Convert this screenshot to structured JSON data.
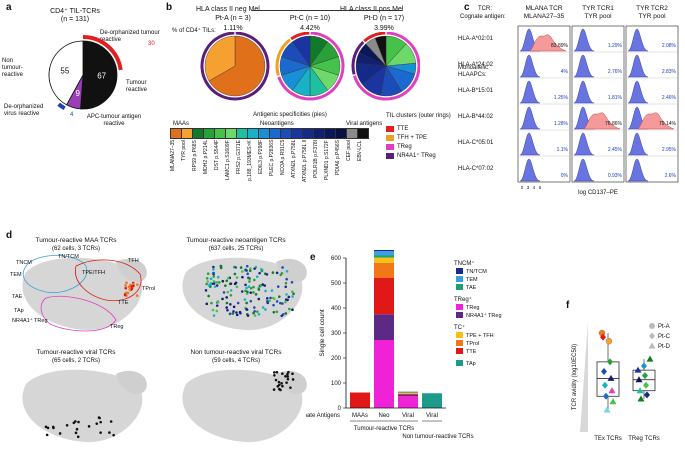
{
  "panel_a": {
    "label": "a",
    "title": "CD4⁺ TIL-TCRs",
    "n": "(n = 131)",
    "slices": [
      {
        "label": "Non tumour-reactive",
        "value": 55,
        "color": "#ffffff"
      },
      {
        "label": "Tumour reactive",
        "value": 67,
        "color": "#111111"
      },
      {
        "label": "APC-tumour antigen reactive",
        "value": 9,
        "color": "#9b3fb8"
      }
    ],
    "ring_deorph_tumour": {
      "label": "De-orphanized tumour reactive",
      "value": "30",
      "color": "#e02020"
    },
    "ring_deorph_virus": {
      "label": "De-orphanized virus reactive",
      "value": "4",
      "color": "#1f3fb4"
    },
    "slice_value_labels": [
      "55",
      "67",
      "9"
    ]
  },
  "panel_b": {
    "label": "b",
    "group1": "HLA class II neg Mel",
    "group2": "HLA class II pos Mel",
    "row_label": "% of CD4⁺ TILs:",
    "patients": [
      {
        "name": "Pt-A",
        "n": "(n = 3)",
        "pct": "1.11%"
      },
      {
        "name": "Pt-C",
        "n": "(n = 10)",
        "pct": "4.42%"
      },
      {
        "name": "Pt-D",
        "n": "(n = 17)",
        "pct": "3.99%"
      }
    ],
    "spec_title": "Antigenic specificities (pies)",
    "maa_label": "MAAs",
    "neo_label": "Neoantigens",
    "viral_label": "Viral antigens",
    "antigens": [
      {
        "name": "MLANA27–35",
        "color": "#e0701a"
      },
      {
        "name": "TYR pool",
        "color": "#f5a030"
      },
      {
        "name": "RPS9 p.P68S",
        "color": "#117a2a"
      },
      {
        "name": "MDH2 p.P214L",
        "color": "#2aa03a"
      },
      {
        "name": "DST p.S544F",
        "color": "#45c24a"
      },
      {
        "name": "LAMC1 p.S1609F",
        "color": "#6fd86a"
      },
      {
        "name": "FRS2 p.G371E",
        "color": "#1fc0a0"
      },
      {
        "name": "p.188_193MES>K",
        "color": "#19b0c8"
      },
      {
        "name": "EDIL3 p.P298F",
        "color": "#1890d8"
      },
      {
        "name": "PLEC p.P2836S",
        "color": "#1c6ad0"
      },
      {
        "name": "NCOA p.R91C5",
        "color": "#1b4cb8"
      },
      {
        "name": "ATXN2L p.P758L",
        "color": "#1a34a0"
      },
      {
        "name": "ATXN2L p.P758L II",
        "color": "#142a88"
      },
      {
        "name": "POLR1B p.F378I",
        "color": "#101f70"
      },
      {
        "name": "PLXND1 p.S172F",
        "color": "#0a1858"
      },
      {
        "name": "PDIA6 p.P456S",
        "color": "#071040"
      },
      {
        "name": "CEF pool",
        "color": "#8a8a8a"
      },
      {
        "name": "EBV-LCL",
        "color": "#111111"
      }
    ],
    "clusters_title": "TIL clusters (outer rings)",
    "clusters": [
      {
        "name": "TTE",
        "color": "#e02020"
      },
      {
        "name": "TFH + TPE",
        "color": "#f0a020"
      },
      {
        "name": "TReg",
        "color": "#e040c0"
      },
      {
        "name": "NR4A1⁺ TReg",
        "color": "#5a1f7a"
      }
    ]
  },
  "panel_c": {
    "label": "c",
    "tcr_row_label": "TCR:",
    "antigen_row_label": "Cognate antigen:",
    "columns": [
      {
        "tcr": "MLANA TCR",
        "antigen": "MLANA27–35"
      },
      {
        "tcr": "TYR TCR1",
        "antigen": "TYR pool"
      },
      {
        "tcr": "TYR TCR2",
        "antigen": "TYR pool"
      }
    ],
    "row_header": "Monoallelic HLAAPCs:",
    "rows": [
      {
        "hla": "HLA-A*02:01",
        "vals": [
          "83.89%",
          "1.29%",
          "2.08%"
        ],
        "pos": [
          true,
          false,
          false
        ]
      },
      {
        "hla": "HLA-A*24:02",
        "vals": [
          "4%",
          "2.76%",
          "2.83%"
        ],
        "pos": [
          false,
          false,
          false
        ]
      },
      {
        "hla": "HLA-B*15:01",
        "vals": [
          "1.25%",
          "1.81%",
          "2.46%"
        ],
        "pos": [
          false,
          false,
          false
        ]
      },
      {
        "hla": "HLA-B*44:02",
        "vals": [
          "1.28%",
          "76.86%",
          "79.14%"
        ],
        "pos": [
          false,
          true,
          true
        ]
      },
      {
        "hla": "HLA-C*05:01",
        "vals": [
          "1.1%",
          "2.45%",
          "2.95%"
        ],
        "pos": [
          false,
          false,
          false
        ]
      },
      {
        "hla": "HLA-C*07:02",
        "vals": [
          "0%",
          "0.93%",
          "2.6%"
        ],
        "pos": [
          false,
          false,
          false
        ]
      }
    ],
    "ticks": [
      "0",
      "3",
      "4",
      "5"
    ],
    "xlabel": "log CD137–PE"
  },
  "panel_d": {
    "label": "d",
    "plots": [
      {
        "title": "Tumour-reactive MAA TCRs",
        "sub": "(62 cells, 3 TCRs)"
      },
      {
        "title": "Tumour-reactive neoantigen TCRs",
        "sub": "(637 cells, 25 TCRs)"
      },
      {
        "title": "Tumour-reactive viral TCRs",
        "sub": "(65 cells, 2 TCRs)"
      },
      {
        "title": "Non tumour-reactive viral TCRs",
        "sub": "(59 cells, 4 TCRs)"
      }
    ],
    "cluster_labels": [
      "TNCM",
      "TN/TCM",
      "TPE/TFH",
      "TEM",
      "TFH",
      "TProl",
      "TAE",
      "TAp",
      "NR4A1⁺ TReg",
      "TReg",
      "TTE"
    ]
  },
  "chart_data": {
    "type": "bar",
    "title": "",
    "ylabel": "Single cell count",
    "xlabel": "Cognate Antigens",
    "categories": [
      "MAAs",
      "Neo",
      "Viral",
      "Viral"
    ],
    "ylim": [
      0,
      600
    ],
    "yticks": [
      0,
      100,
      200,
      300,
      400,
      500,
      600
    ],
    "series": [
      {
        "name": "TAp",
        "color": "#1c9a8a",
        "values": [
          0,
          0,
          0,
          59
        ]
      },
      {
        "name": "TTE",
        "color": "#e01818",
        "values": [
          62,
          0,
          0,
          0
        ]
      },
      {
        "name": "TReg",
        "color": "#f022d8",
        "values": [
          0,
          272,
          47,
          0
        ]
      },
      {
        "name": "NR4A1⁺ TReg",
        "color": "#5c2a84",
        "values": [
          0,
          103,
          6,
          0
        ]
      },
      {
        "name": "TTE",
        "color": "#e01818",
        "values": [
          0,
          145,
          4,
          0
        ]
      },
      {
        "name": "TProl",
        "color": "#f07818",
        "values": [
          0,
          60,
          0,
          0
        ]
      },
      {
        "name": "TPE + TFH",
        "color": "#f5c018",
        "values": [
          0,
          22,
          4,
          0
        ]
      },
      {
        "name": "TAE",
        "color": "#20a070",
        "values": [
          0,
          8,
          2,
          0
        ]
      },
      {
        "name": "TEM",
        "color": "#3aa0e0",
        "values": [
          0,
          18,
          0,
          0
        ]
      },
      {
        "name": "TN/TCM",
        "color": "#1a2a8c",
        "values": [
          0,
          9,
          2,
          0
        ]
      }
    ],
    "group_labels": [
      "Tumour-reactive TCRs",
      "Non tumour-reactive TCRs"
    ],
    "legend_groups": [
      {
        "header": "TNCM⁺",
        "items": [
          "TN/TCM",
          "TEM",
          "TAE"
        ]
      },
      {
        "header": "TReg⁺",
        "items": [
          "TReg",
          "NR4A1⁺ TReg"
        ]
      },
      {
        "header": "TC⁺",
        "items": [
          "TPE + TFH",
          "TProl",
          "TTE"
        ]
      },
      {
        "header": "",
        "items": [
          "TAp"
        ]
      }
    ]
  },
  "panel_e_label": "e",
  "panel_f": {
    "label": "f",
    "ylabel": "TCR avidity (log10EC50)",
    "categories": [
      "TEx TCRs",
      "TReg TCRs"
    ],
    "legend": [
      {
        "name": "Pt-A",
        "shape": "circle"
      },
      {
        "name": "Pt-C",
        "shape": "diamond"
      },
      {
        "name": "Pt-D",
        "shape": "triangle"
      }
    ],
    "points": [
      {
        "g": 0,
        "v": 7.2,
        "s": "circle",
        "c": "#f07818"
      },
      {
        "g": 0,
        "v": 6.6,
        "s": "circle",
        "c": "#f5a030"
      },
      {
        "g": 0,
        "v": 6.9,
        "s": "diamond",
        "c": "#e01818"
      },
      {
        "g": 0,
        "v": 5.1,
        "s": "diamond",
        "c": "#2aa03a"
      },
      {
        "g": 0,
        "v": 4.4,
        "s": "diamond",
        "c": "#1b4cb8"
      },
      {
        "g": 0,
        "v": 3.9,
        "s": "triangle",
        "c": "#101f70"
      },
      {
        "g": 0,
        "v": 3.4,
        "s": "diamond",
        "c": "#19b0c8"
      },
      {
        "g": 0,
        "v": 3.0,
        "s": "triangle",
        "c": "#e040c0"
      },
      {
        "g": 0,
        "v": 2.6,
        "s": "diamond",
        "c": "#1c6ad0"
      },
      {
        "g": 0,
        "v": 2.2,
        "s": "triangle",
        "c": "#45c24a"
      },
      {
        "g": 0,
        "v": 1.6,
        "s": "triangle",
        "c": "#6fd8e0"
      },
      {
        "g": 1,
        "v": 5.3,
        "s": "triangle",
        "c": "#117a2a"
      },
      {
        "g": 1,
        "v": 4.8,
        "s": "diamond",
        "c": "#1890d8"
      },
      {
        "g": 1,
        "v": 4.5,
        "s": "triangle",
        "c": "#1a34a0"
      },
      {
        "g": 1,
        "v": 4.1,
        "s": "diamond",
        "c": "#2aa03a"
      },
      {
        "g": 1,
        "v": 3.8,
        "s": "triangle",
        "c": "#0a1858"
      },
      {
        "g": 1,
        "v": 3.4,
        "s": "diamond",
        "c": "#45c24a"
      },
      {
        "g": 1,
        "v": 3.0,
        "s": "triangle",
        "c": "#1fc0a0"
      },
      {
        "g": 1,
        "v": 2.7,
        "s": "diamond",
        "c": "#142a88"
      },
      {
        "g": 1,
        "v": 2.4,
        "s": "triangle",
        "c": "#117a2a"
      }
    ]
  }
}
